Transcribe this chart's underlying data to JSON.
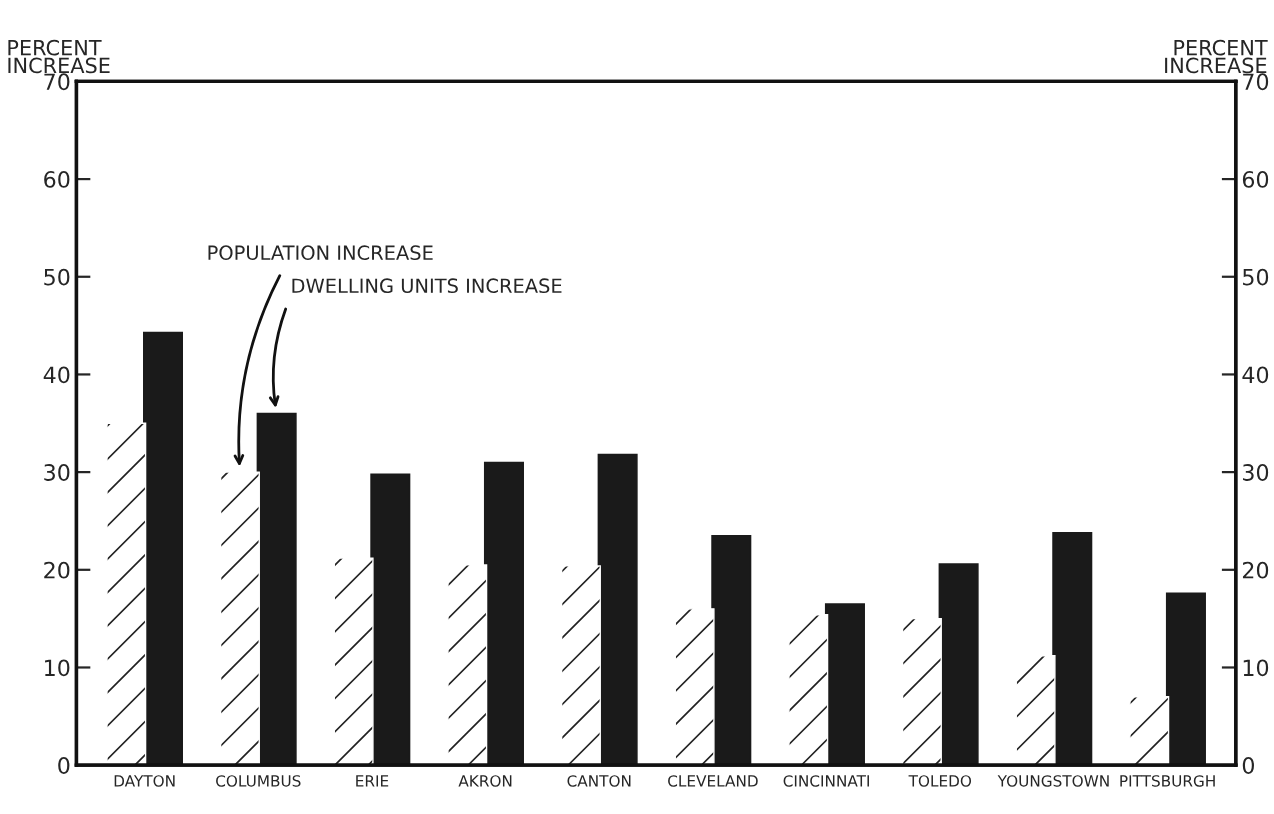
{
  "chart_data": {
    "type": "bar",
    "ylabel": "PERCENT\nINCREASE",
    "y2label": "PERCENT\nINCREASE",
    "categories": [
      "DAYTON",
      "COLUMBUS",
      "ERIE",
      "AKRON",
      "CANTON",
      "CLEVELAND",
      "CINCINNATI",
      "TOLEDO",
      "YOUNGSTOWN",
      "PITTSBURGH"
    ],
    "series": [
      {
        "name": "POPULATION INCREASE",
        "color": "#ffffff",
        "values": [
          35,
          30,
          21.2,
          20.5,
          20.4,
          16,
          15.4,
          15,
          11.2,
          7
        ]
      },
      {
        "name": "DWELLING UNITS INCREASE",
        "color": "#1a1a1a",
        "values": [
          44.3,
          36,
          29.8,
          31,
          31.8,
          23.5,
          16.5,
          20.6,
          23.8,
          17.6
        ]
      }
    ],
    "ylim": [
      0,
      70
    ],
    "yticks": [
      0,
      10,
      20,
      30,
      40,
      50,
      60,
      70
    ],
    "y2lim": [
      0,
      70
    ],
    "y2ticks": [
      0,
      10,
      20,
      30,
      40,
      50,
      60,
      70
    ],
    "grid": false,
    "legend": false
  }
}
